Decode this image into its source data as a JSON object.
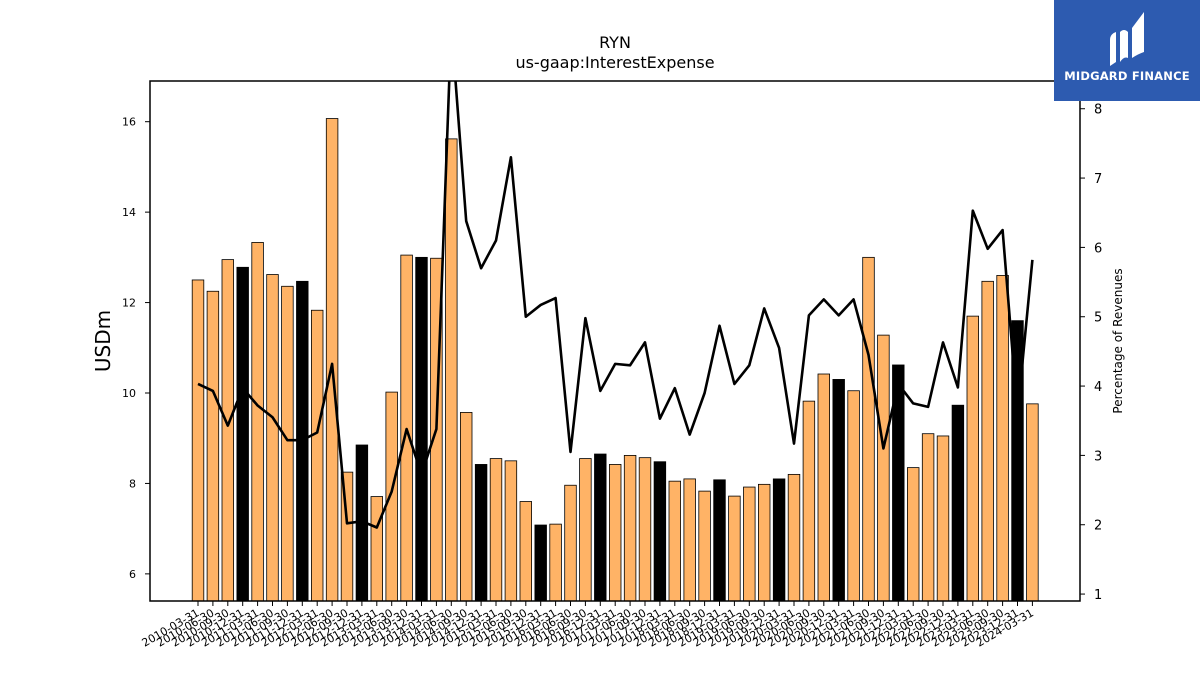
{
  "chart_data": {
    "type": "bar+line",
    "title": "RYN",
    "subtitle": "us-gaap:InterestExpense",
    "ylabel": "USDm",
    "y2label": "Percentage of Revenues",
    "ylim": [
      5.4,
      16.9
    ],
    "y2lim": [
      0.9,
      8.4
    ],
    "yticks": [
      6,
      8,
      10,
      12,
      14,
      16
    ],
    "y2ticks": [
      1,
      2,
      3,
      4,
      5,
      6,
      7,
      8
    ],
    "categories": [
      "2010-03-31",
      "2010-06-30",
      "2010-09-30",
      "2010-12-31",
      "2011-03-31",
      "2011-06-30",
      "2011-09-30",
      "2011-12-31",
      "2012-03-31",
      "2012-06-30",
      "2012-09-30",
      "2012-12-31",
      "2013-03-31",
      "2013-06-30",
      "2013-09-30",
      "2013-12-31",
      "2014-03-31",
      "2014-06-30",
      "2014-09-30",
      "2014-12-31",
      "2015-03-31",
      "2015-06-30",
      "2015-09-30",
      "2015-12-31",
      "2016-03-31",
      "2016-06-30",
      "2016-09-30",
      "2016-12-31",
      "2017-03-31",
      "2017-06-30",
      "2017-09-30",
      "2017-12-31",
      "2018-03-31",
      "2018-06-30",
      "2018-09-30",
      "2018-12-31",
      "2019-03-31",
      "2019-06-30",
      "2019-09-30",
      "2019-12-31",
      "2020-03-31",
      "2020-06-30",
      "2020-09-30",
      "2020-12-31",
      "2021-03-31",
      "2021-06-30",
      "2021-09-30",
      "2021-12-31",
      "2022-03-31",
      "2022-06-30",
      "2022-09-30",
      "2022-12-31",
      "2023-03-31",
      "2023-06-30",
      "2023-09-30",
      "2023-12-31",
      "2024-03-31"
    ],
    "bar_values": [
      12.5,
      12.25,
      12.95,
      12.78,
      13.33,
      12.62,
      12.36,
      12.47,
      11.83,
      16.07,
      8.25,
      8.85,
      7.71,
      10.02,
      13.05,
      13.0,
      12.98,
      15.62,
      9.57,
      8.42,
      8.55,
      8.5,
      7.6,
      7.08,
      7.1,
      7.96,
      8.55,
      8.65,
      8.42,
      8.62,
      8.57,
      8.48,
      8.05,
      8.1,
      7.83,
      8.08,
      7.72,
      7.92,
      7.98,
      8.1,
      8.2,
      9.82,
      10.42,
      10.3,
      10.05,
      13.0,
      11.28,
      10.62,
      8.35,
      9.1,
      9.05,
      9.73,
      11.7,
      12.47,
      12.6,
      11.6,
      9.76
    ],
    "bar_is_q4": [
      false,
      false,
      false,
      true,
      false,
      false,
      false,
      true,
      false,
      false,
      false,
      true,
      false,
      false,
      false,
      true,
      false,
      false,
      false,
      true,
      false,
      false,
      false,
      true,
      false,
      false,
      false,
      true,
      false,
      false,
      false,
      true,
      false,
      false,
      false,
      true,
      false,
      false,
      false,
      true,
      false,
      false,
      false,
      true,
      false,
      false,
      false,
      true,
      false,
      false,
      false,
      true,
      false,
      false,
      false,
      true,
      false
    ],
    "line_values": [
      4.03,
      3.93,
      3.43,
      3.97,
      3.72,
      3.55,
      3.22,
      3.22,
      3.33,
      4.32,
      2.02,
      2.05,
      1.96,
      2.48,
      3.38,
      2.73,
      3.38,
      9.2,
      6.38,
      5.7,
      6.1,
      7.3,
      5.0,
      5.17,
      5.27,
      3.05,
      4.98,
      3.93,
      4.32,
      4.3,
      4.63,
      3.53,
      3.97,
      3.3,
      3.9,
      4.87,
      4.03,
      4.3,
      5.12,
      4.55,
      3.17,
      5.02,
      5.25,
      5.02,
      5.25,
      4.45,
      3.1,
      4.03,
      3.75,
      3.7,
      4.63,
      3.98,
      6.53,
      5.98,
      6.25,
      3.6,
      5.82
    ],
    "colors": {
      "bar": "#ffb366",
      "bar_q4": "#000000",
      "line": "#000000"
    }
  },
  "logo": {
    "text": "MIDGARD FINANCE",
    "icon": "midgard-logo-icon"
  }
}
